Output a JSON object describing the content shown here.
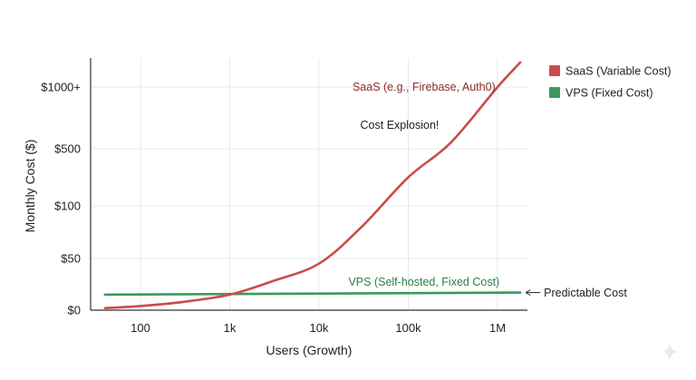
{
  "chart_data": {
    "type": "line",
    "title": "",
    "xlabel": "Users (Growth)",
    "ylabel": "Monthly Cost ($)",
    "x_scale": "log",
    "x_ticks": [
      100,
      1000,
      10000,
      100000,
      1000000
    ],
    "x_tick_labels": [
      "100",
      "1k",
      "10k",
      "100k",
      "1M"
    ],
    "xlim": [
      40,
      1800000
    ],
    "y_ticks": [
      0,
      50,
      100,
      500,
      1000
    ],
    "y_tick_labels": [
      "$0",
      "$50",
      "$100",
      "$500",
      "$1000+"
    ],
    "y_scale": "nonlinear",
    "grid": true,
    "legend_position": "right",
    "series": [
      {
        "name": "SaaS (Variable Cost)",
        "color": "#c94d4a",
        "x": [
          40,
          100,
          300,
          1000,
          3000,
          10000,
          30000,
          100000,
          300000,
          1000000,
          1800000
        ],
        "y": [
          2,
          4,
          8,
          15,
          28,
          45,
          80,
          300,
          550,
          1000,
          1200
        ]
      },
      {
        "name": "VPS (Fixed Cost)",
        "color": "#3a9a5b",
        "x": [
          40,
          1800000
        ],
        "y": [
          15,
          17
        ]
      }
    ],
    "annotations": [
      {
        "text": "SaaS (e.g., Firebase, Auth0)",
        "color": "#8a2e2c",
        "x": 150000,
        "y": 1000
      },
      {
        "text": "Cost Explosion!",
        "color": "#222222",
        "x": 80000,
        "y": 690
      },
      {
        "text": "VPS (Self-hosted, Fixed Cost)",
        "color": "#2f7f49",
        "x": 150000,
        "y": 27
      },
      {
        "text": "Predictable Cost",
        "color": "#222222",
        "arrow": true,
        "x": 1800000,
        "y": 17
      }
    ]
  }
}
